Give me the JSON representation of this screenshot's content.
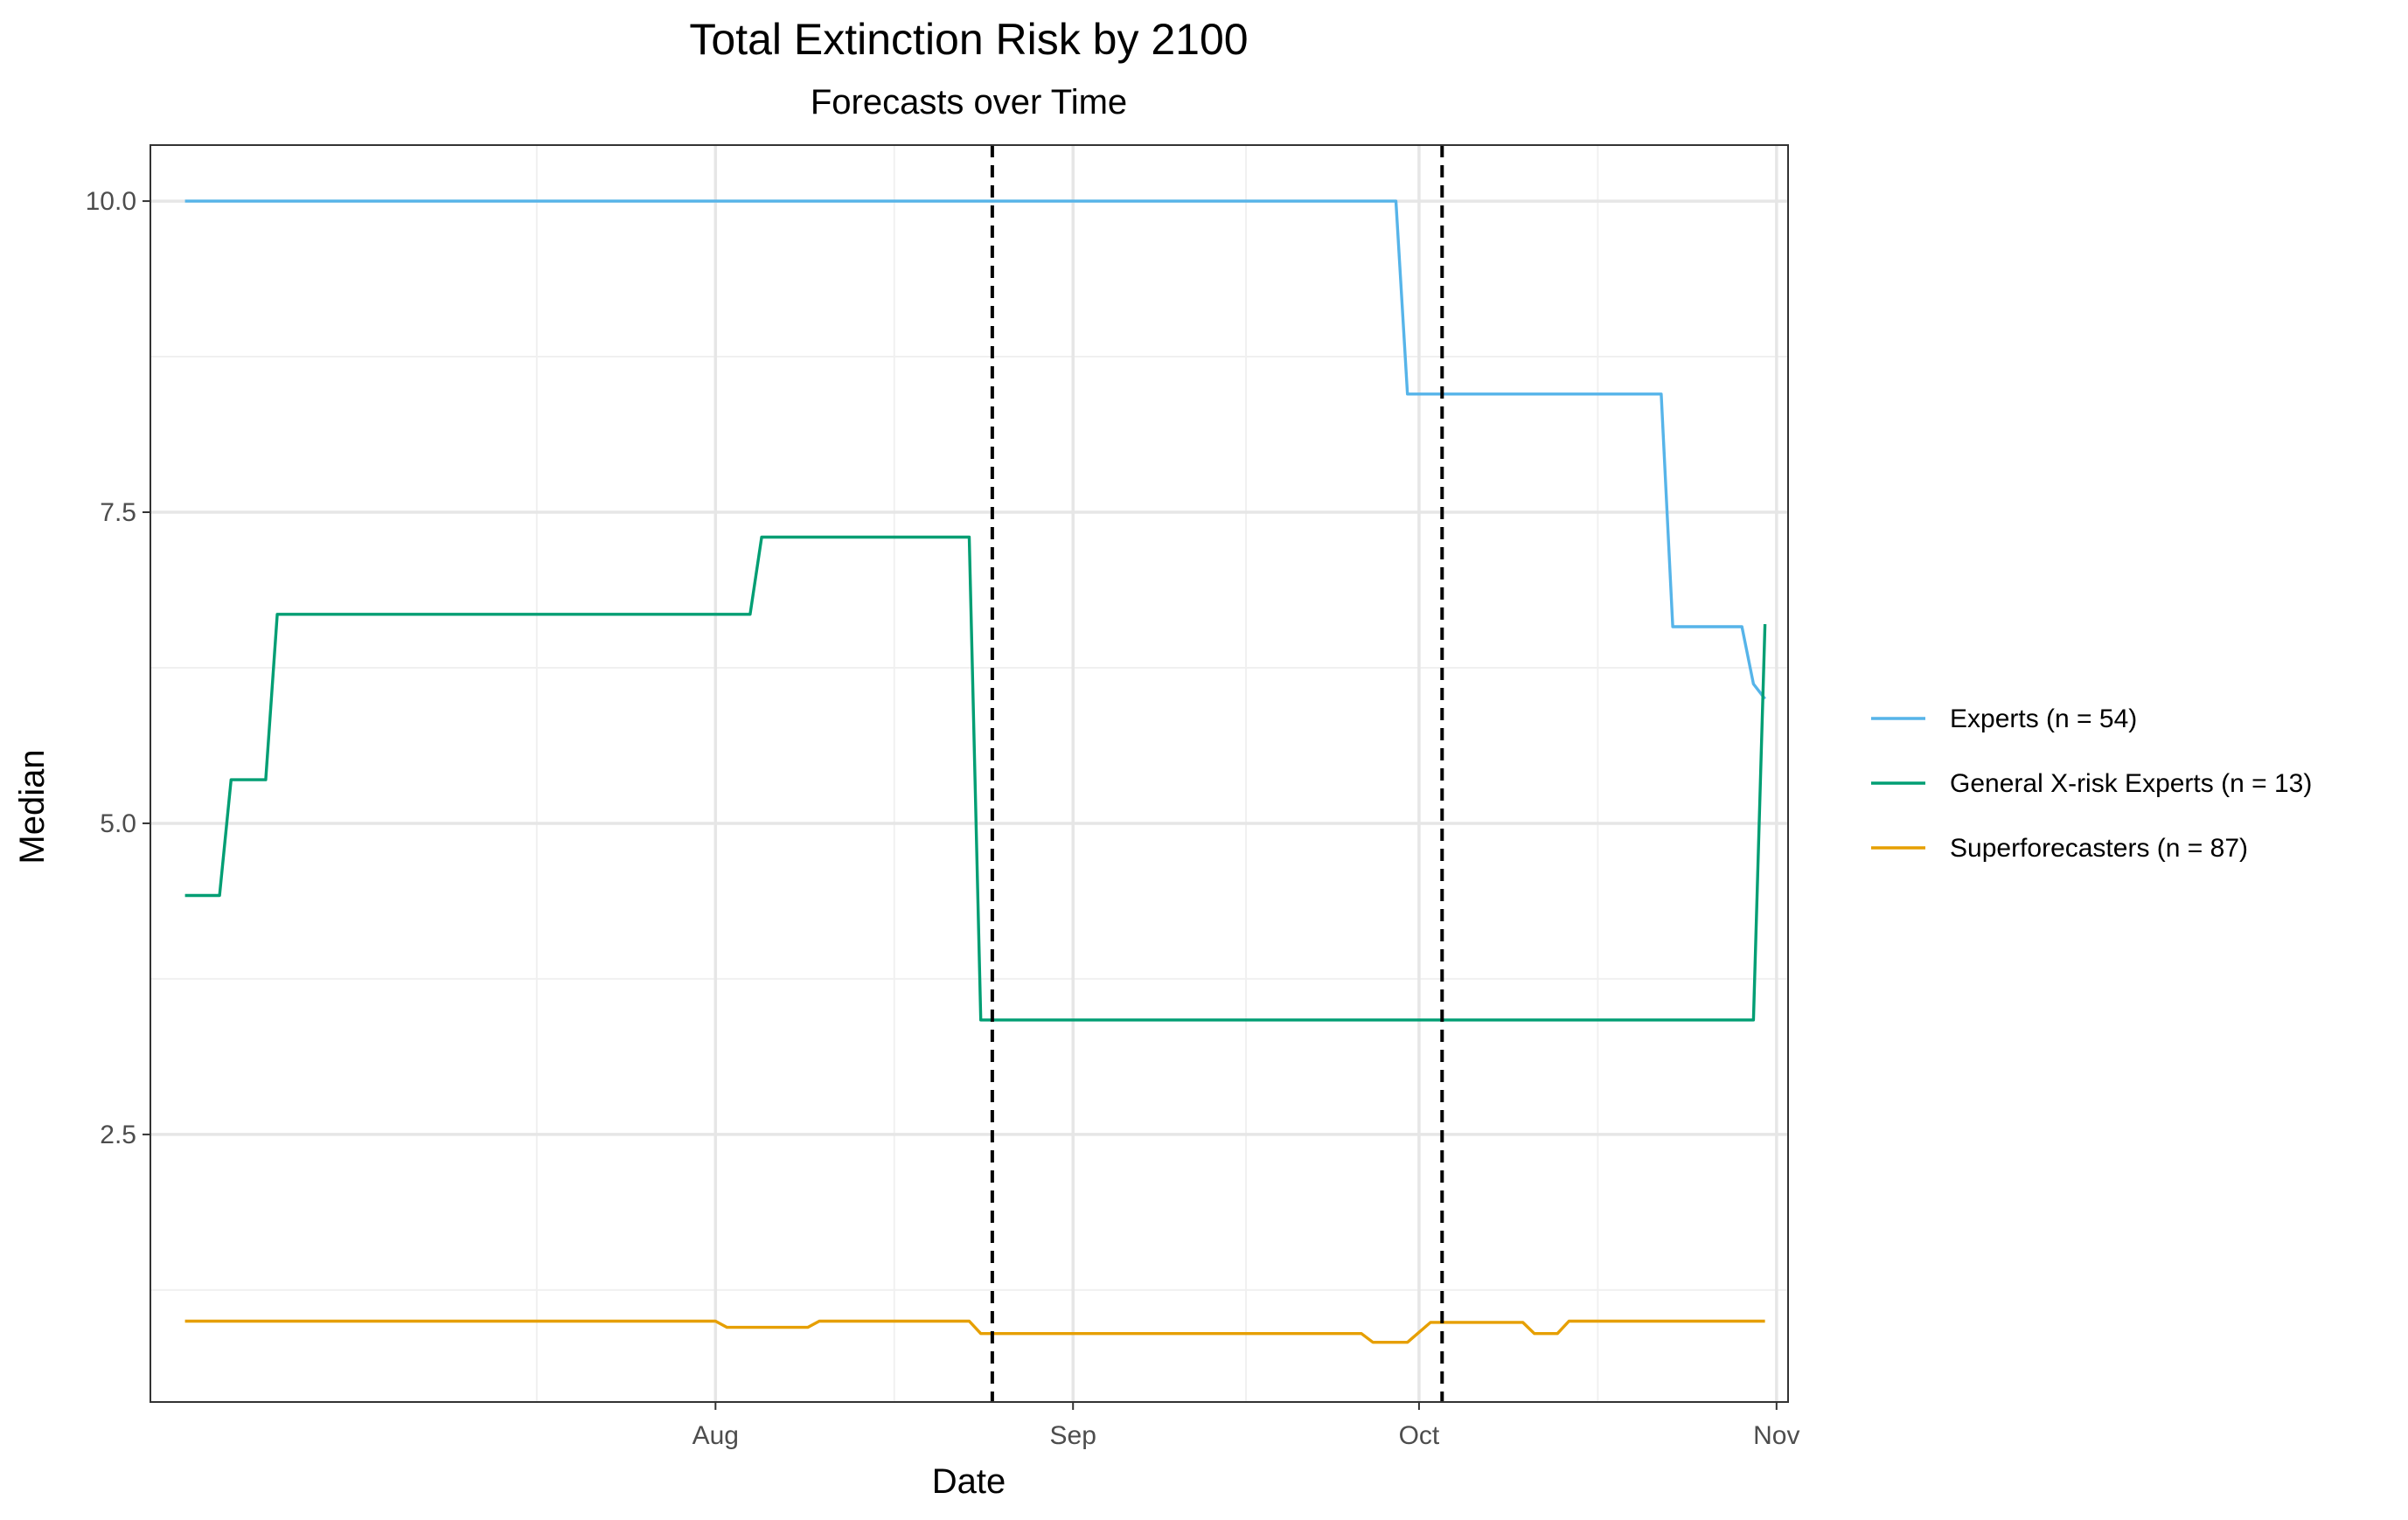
{
  "chart_data": {
    "type": "line",
    "title": "Total Extinction Risk by 2100",
    "subtitle": "Forecasts over Time",
    "xlabel": "Date",
    "ylabel": "Median",
    "x_type": "date",
    "xlim": [
      "2022-06-13",
      "2022-11-02"
    ],
    "ylim": [
      0.35,
      10.45
    ],
    "x_ticks": [
      {
        "date": "2022-08-01",
        "label": "Aug"
      },
      {
        "date": "2022-09-01",
        "label": "Sep"
      },
      {
        "date": "2022-10-01",
        "label": "Oct"
      },
      {
        "date": "2022-11-01",
        "label": "Nov"
      }
    ],
    "y_ticks": [
      {
        "value": 2.5,
        "label": "2.5"
      },
      {
        "value": 5.0,
        "label": "5.0"
      },
      {
        "value": 7.5,
        "label": "7.5"
      },
      {
        "value": 10.0,
        "label": "10.0"
      }
    ],
    "grid": true,
    "legend_position": "right",
    "reference_lines": [
      {
        "date": "2022-08-25",
        "style": "dashed",
        "color": "#000000"
      },
      {
        "date": "2022-10-03",
        "style": "dashed",
        "color": "#000000"
      }
    ],
    "series": [
      {
        "name": "Experts (n = 54)",
        "color": "#56B4E9",
        "points": [
          [
            "2022-06-16",
            10.0
          ],
          [
            "2022-09-29",
            10.0
          ],
          [
            "2022-09-30",
            8.45
          ],
          [
            "2022-10-22",
            8.45
          ],
          [
            "2022-10-23",
            6.58
          ],
          [
            "2022-10-29",
            6.58
          ],
          [
            "2022-10-30",
            6.12
          ],
          [
            "2022-10-31",
            6.0
          ]
        ]
      },
      {
        "name": "General X-risk Experts (n = 13)",
        "color": "#009E73",
        "points": [
          [
            "2022-06-16",
            4.42
          ],
          [
            "2022-06-19",
            4.42
          ],
          [
            "2022-06-20",
            5.35
          ],
          [
            "2022-06-23",
            5.35
          ],
          [
            "2022-06-24",
            6.68
          ],
          [
            "2022-08-04",
            6.68
          ],
          [
            "2022-08-05",
            7.3
          ],
          [
            "2022-08-23",
            7.3
          ],
          [
            "2022-08-24",
            3.42
          ],
          [
            "2022-10-30",
            3.42
          ],
          [
            "2022-10-31",
            6.6
          ]
        ]
      },
      {
        "name": "Superforecasters (n = 87)",
        "color": "#E69F00",
        "points": [
          [
            "2022-06-16",
            1.0
          ],
          [
            "2022-08-01",
            1.0
          ],
          [
            "2022-08-02",
            0.95
          ],
          [
            "2022-08-09",
            0.95
          ],
          [
            "2022-08-10",
            1.0
          ],
          [
            "2022-08-23",
            1.0
          ],
          [
            "2022-08-24",
            0.9
          ],
          [
            "2022-09-26",
            0.9
          ],
          [
            "2022-09-27",
            0.83
          ],
          [
            "2022-09-30",
            0.83
          ],
          [
            "2022-10-02",
            0.99
          ],
          [
            "2022-10-10",
            0.99
          ],
          [
            "2022-10-11",
            0.9
          ],
          [
            "2022-10-13",
            0.9
          ],
          [
            "2022-10-14",
            1.0
          ],
          [
            "2022-10-31",
            1.0
          ]
        ]
      }
    ]
  }
}
